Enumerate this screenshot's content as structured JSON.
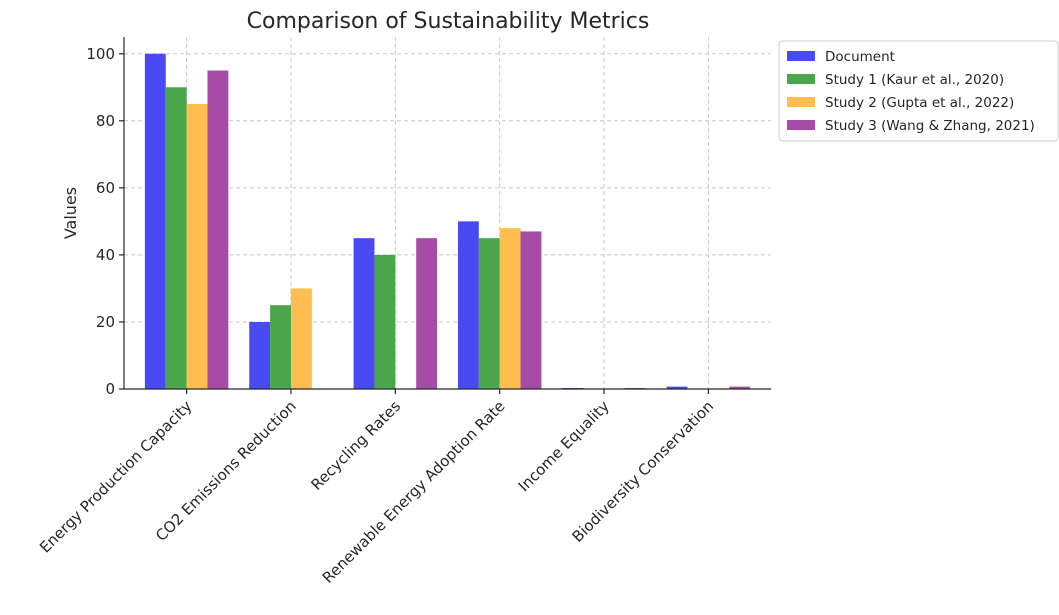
{
  "chart_data": {
    "type": "bar",
    "title": "Comparison of Sustainability Metrics",
    "xlabel": "",
    "ylabel": "Values",
    "ylim": [
      0,
      105
    ],
    "yticks": [
      0,
      20,
      40,
      60,
      80,
      100
    ],
    "grid": true,
    "legend_position": "outside top-right",
    "categories": [
      "Energy Production Capacity",
      "CO2 Emissions Reduction",
      "Recycling Rates",
      "Renewable Energy Adoption Rate",
      "Income Equality",
      "Biodiversity Conservation"
    ],
    "series": [
      {
        "name": "Document",
        "color": "#4a4af5",
        "values": [
          100,
          20,
          45,
          50,
          0.3,
          0.7
        ]
      },
      {
        "name": "Study 1 (Kaur et al., 2020)",
        "color": "#4aa64a",
        "values": [
          90,
          25,
          40,
          45,
          0,
          0
        ]
      },
      {
        "name": "Study 2 (Gupta et al., 2022)",
        "color": "#ffbe4f",
        "values": [
          85,
          30,
          0,
          48,
          0,
          0
        ]
      },
      {
        "name": "Study 3 (Wang & Zhang, 2021)",
        "color": "#a64ca6",
        "values": [
          95,
          0,
          45,
          47,
          0.3,
          0.7
        ]
      }
    ]
  }
}
